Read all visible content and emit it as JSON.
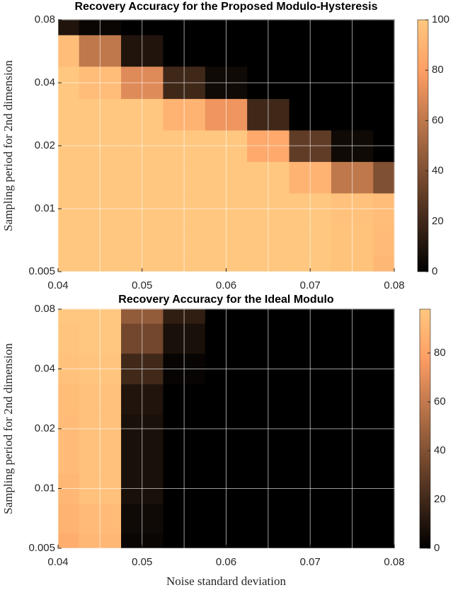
{
  "chart_data": [
    {
      "type": "heatmap",
      "title": "Recovery Accuracy for the Proposed Modulo-Hysteresis",
      "ylabel": "Sampling period for 2nd dimension",
      "x": [
        0.04,
        0.045,
        0.05,
        0.055,
        0.06,
        0.065,
        0.07,
        0.075,
        0.08
      ],
      "y": [
        0.005,
        0.007,
        0.01,
        0.014,
        0.02,
        0.028,
        0.04,
        0.057,
        0.08
      ],
      "z": [
        [
          100,
          100,
          100,
          100,
          100,
          100,
          100,
          98,
          92
        ],
        [
          100,
          100,
          100,
          100,
          100,
          100,
          100,
          98,
          94
        ],
        [
          100,
          100,
          100,
          100,
          100,
          100,
          100,
          97,
          95
        ],
        [
          100,
          100,
          100,
          100,
          100,
          100,
          90,
          60,
          40
        ],
        [
          100,
          100,
          100,
          100,
          100,
          85,
          30,
          5,
          0
        ],
        [
          100,
          100,
          100,
          90,
          75,
          20,
          0,
          0,
          0
        ],
        [
          100,
          95,
          70,
          20,
          5,
          0,
          0,
          0,
          0
        ],
        [
          95,
          60,
          10,
          0,
          0,
          0,
          0,
          0,
          0
        ],
        [
          10,
          3,
          0,
          0,
          0,
          0,
          0,
          0,
          0
        ]
      ],
      "xlim": [
        0.04,
        0.08
      ],
      "xticks": [
        0.04,
        0.05,
        0.06,
        0.07,
        0.08
      ],
      "xminorgrid": [
        0.045,
        0.055,
        0.065,
        0.075
      ],
      "ylim": [
        0.005,
        0.08
      ],
      "yticks": [
        0.005,
        0.01,
        0.02,
        0.04,
        0.08
      ],
      "yscale": "log",
      "colormap": "copper",
      "clim": [
        0,
        100
      ],
      "cticks": [
        0,
        20,
        40,
        60,
        80,
        100
      ],
      "grid": true
    },
    {
      "type": "heatmap",
      "title": "Recovery Accuracy for the Ideal Modulo",
      "xlabel": "Noise standard deviation",
      "ylabel": "Sampling period for 2nd dimension",
      "x": [
        0.04,
        0.045,
        0.05,
        0.055,
        0.06,
        0.065,
        0.07,
        0.075,
        0.08
      ],
      "y": [
        0.005,
        0.007,
        0.01,
        0.014,
        0.02,
        0.028,
        0.04,
        0.057,
        0.08
      ],
      "z": [
        [
          85,
          90,
          3,
          0,
          0,
          0,
          0,
          0,
          0
        ],
        [
          88,
          92,
          5,
          0,
          0,
          0,
          0,
          0,
          0
        ],
        [
          90,
          95,
          8,
          0,
          0,
          0,
          0,
          0,
          0
        ],
        [
          92,
          95,
          8,
          0,
          0,
          0,
          0,
          0,
          0
        ],
        [
          92,
          95,
          8,
          0,
          0,
          0,
          0,
          0,
          0
        ],
        [
          93,
          95,
          10,
          0,
          0,
          0,
          0,
          0,
          0
        ],
        [
          95,
          97,
          20,
          2,
          0,
          0,
          0,
          0,
          0
        ],
        [
          97,
          98,
          35,
          8,
          0,
          0,
          0,
          0,
          0
        ],
        [
          98,
          98,
          45,
          15,
          0,
          0,
          0,
          0,
          0
        ]
      ],
      "xlim": [
        0.04,
        0.08
      ],
      "xticks": [
        0.04,
        0.05,
        0.06,
        0.07,
        0.08
      ],
      "xminorgrid": [
        0.045,
        0.055,
        0.065,
        0.075
      ],
      "ylim": [
        0.005,
        0.08
      ],
      "yticks": [
        0.005,
        0.01,
        0.02,
        0.04,
        0.08
      ],
      "yscale": "log",
      "colormap": "copper",
      "clim": [
        0,
        98
      ],
      "cticks": [
        0,
        20,
        40,
        60,
        80
      ],
      "grid": true
    }
  ]
}
